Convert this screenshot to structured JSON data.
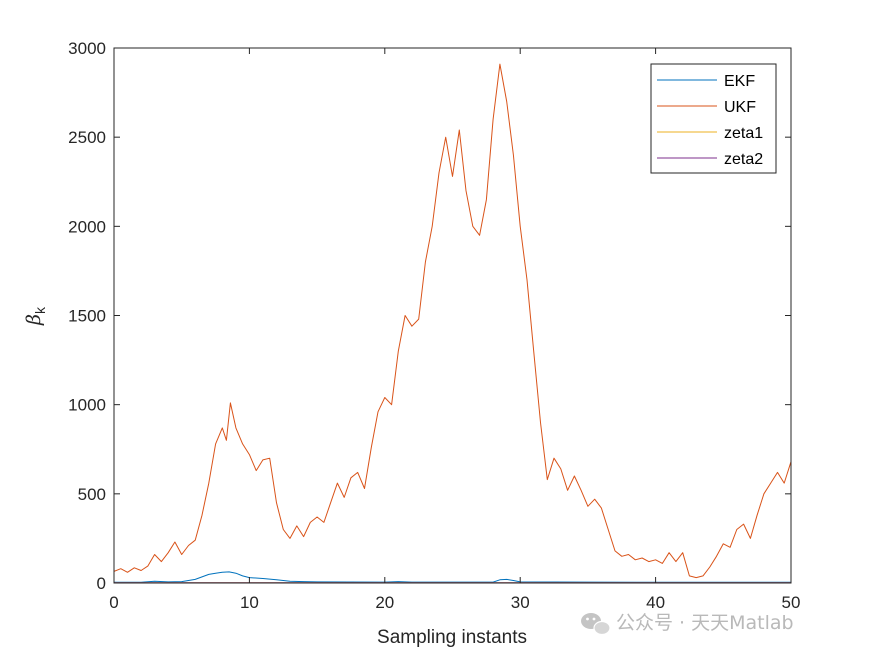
{
  "chart_data": {
    "type": "line",
    "xlabel": "Sampling instants",
    "ylabel": "β",
    "ylabel_subscript": "k",
    "xlim": [
      0,
      50
    ],
    "ylim": [
      0,
      3000
    ],
    "xticks": [
      0,
      10,
      20,
      30,
      40,
      50
    ],
    "yticks": [
      0,
      500,
      1000,
      1500,
      2000,
      2500,
      3000
    ],
    "grid": false,
    "legend_position": "top-right",
    "series": [
      {
        "name": "EKF",
        "color": "#0072BD",
        "points": [
          [
            0,
            4
          ],
          [
            2,
            4
          ],
          [
            3,
            10
          ],
          [
            4,
            6
          ],
          [
            5,
            8
          ],
          [
            6,
            20
          ],
          [
            7,
            48
          ],
          [
            7.5,
            55
          ],
          [
            8,
            60
          ],
          [
            8.5,
            62
          ],
          [
            9,
            55
          ],
          [
            9.5,
            40
          ],
          [
            10,
            30
          ],
          [
            11,
            25
          ],
          [
            12,
            18
          ],
          [
            13,
            10
          ],
          [
            14,
            8
          ],
          [
            15,
            6
          ],
          [
            20,
            5
          ],
          [
            21,
            8
          ],
          [
            22,
            5
          ],
          [
            28,
            5
          ],
          [
            28.5,
            18
          ],
          [
            29,
            20
          ],
          [
            29.5,
            14
          ],
          [
            30,
            6
          ],
          [
            35,
            5
          ],
          [
            40,
            4
          ],
          [
            50,
            4
          ]
        ]
      },
      {
        "name": "UKF",
        "color": "#D95319",
        "points": [
          [
            0,
            65
          ],
          [
            0.5,
            80
          ],
          [
            1,
            60
          ],
          [
            1.5,
            85
          ],
          [
            2,
            70
          ],
          [
            2.5,
            95
          ],
          [
            3,
            160
          ],
          [
            3.5,
            120
          ],
          [
            4,
            170
          ],
          [
            4.5,
            230
          ],
          [
            5,
            160
          ],
          [
            5.5,
            210
          ],
          [
            6,
            240
          ],
          [
            6.5,
            380
          ],
          [
            7,
            560
          ],
          [
            7.5,
            780
          ],
          [
            8,
            870
          ],
          [
            8.3,
            800
          ],
          [
            8.6,
            1010
          ],
          [
            9,
            870
          ],
          [
            9.5,
            780
          ],
          [
            10,
            720
          ],
          [
            10.5,
            630
          ],
          [
            11,
            690
          ],
          [
            11.5,
            700
          ],
          [
            12,
            450
          ],
          [
            12.5,
            300
          ],
          [
            13,
            250
          ],
          [
            13.5,
            320
          ],
          [
            14,
            260
          ],
          [
            14.5,
            340
          ],
          [
            15,
            370
          ],
          [
            15.5,
            340
          ],
          [
            16,
            450
          ],
          [
            16.5,
            560
          ],
          [
            17,
            480
          ],
          [
            17.5,
            590
          ],
          [
            18,
            620
          ],
          [
            18.5,
            530
          ],
          [
            19,
            760
          ],
          [
            19.5,
            960
          ],
          [
            20,
            1040
          ],
          [
            20.5,
            1000
          ],
          [
            21,
            1300
          ],
          [
            21.5,
            1500
          ],
          [
            22,
            1440
          ],
          [
            22.5,
            1480
          ],
          [
            23,
            1800
          ],
          [
            23.5,
            2000
          ],
          [
            24,
            2300
          ],
          [
            24.5,
            2500
          ],
          [
            25,
            2280
          ],
          [
            25.5,
            2540
          ],
          [
            26,
            2200
          ],
          [
            26.5,
            2000
          ],
          [
            27,
            1950
          ],
          [
            27.5,
            2150
          ],
          [
            28,
            2600
          ],
          [
            28.5,
            2910
          ],
          [
            29,
            2700
          ],
          [
            29.5,
            2400
          ],
          [
            30,
            2000
          ],
          [
            30.5,
            1700
          ],
          [
            31,
            1300
          ],
          [
            31.5,
            900
          ],
          [
            32,
            580
          ],
          [
            32.5,
            700
          ],
          [
            33,
            640
          ],
          [
            33.5,
            520
          ],
          [
            34,
            600
          ],
          [
            34.5,
            520
          ],
          [
            35,
            430
          ],
          [
            35.5,
            470
          ],
          [
            36,
            420
          ],
          [
            36.5,
            300
          ],
          [
            37,
            180
          ],
          [
            37.5,
            150
          ],
          [
            38,
            160
          ],
          [
            38.5,
            130
          ],
          [
            39,
            140
          ],
          [
            39.5,
            120
          ],
          [
            40,
            130
          ],
          [
            40.5,
            110
          ],
          [
            41,
            170
          ],
          [
            41.5,
            120
          ],
          [
            42,
            170
          ],
          [
            42.5,
            40
          ],
          [
            43,
            30
          ],
          [
            43.5,
            40
          ],
          [
            44,
            90
          ],
          [
            44.5,
            150
          ],
          [
            45,
            220
          ],
          [
            45.5,
            200
          ],
          [
            46,
            300
          ],
          [
            46.5,
            330
          ],
          [
            47,
            250
          ],
          [
            47.5,
            380
          ],
          [
            48,
            500
          ],
          [
            48.5,
            560
          ],
          [
            49,
            620
          ],
          [
            49.5,
            560
          ],
          [
            50,
            680
          ]
        ]
      },
      {
        "name": "zeta1",
        "color": "#EDB120",
        "points": [
          [
            0,
            1
          ],
          [
            50,
            1
          ]
        ]
      },
      {
        "name": "zeta2",
        "color": "#7E2F8E",
        "points": [
          [
            0,
            1
          ],
          [
            50,
            1
          ]
        ]
      }
    ]
  },
  "watermark": {
    "text": "公众号 · 天天Matlab",
    "icon": "wechat-icon"
  }
}
